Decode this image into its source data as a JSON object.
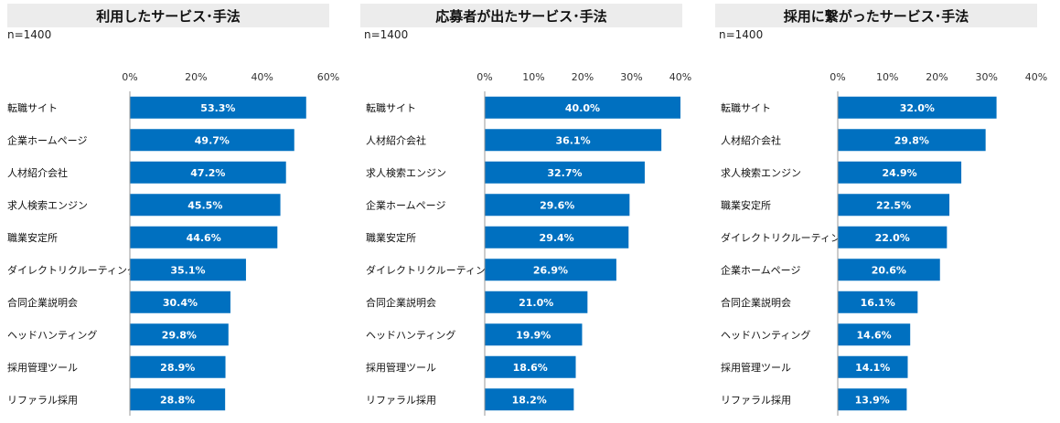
{
  "chart_data": [
    {
      "type": "bar",
      "orientation": "horizontal",
      "title": "利用したサービス･手法",
      "note": "n=1400",
      "categories": [
        "転職サイト",
        "企業ホームページ",
        "人材紹介会社",
        "求人検索エンジン",
        "職業安定所",
        "ダイレクトリクルーティング",
        "合同企業説明会",
        "ヘッドハンティング",
        "採用管理ツール",
        "リファラル採用"
      ],
      "values": [
        53.3,
        49.7,
        47.2,
        45.5,
        44.6,
        35.1,
        30.4,
        29.8,
        28.9,
        28.8
      ],
      "value_labels": [
        "53.3%",
        "49.7%",
        "47.2%",
        "45.5%",
        "44.6%",
        "35.1%",
        "30.4%",
        "29.8%",
        "28.9%",
        "28.8%"
      ],
      "xlim": [
        0,
        60
      ],
      "ticks": [
        "0%",
        "20%",
        "40%",
        "60%"
      ],
      "axis_position": "top",
      "bar_color": "#0070c0"
    },
    {
      "type": "bar",
      "orientation": "horizontal",
      "title": "応募者が出たサービス･手法",
      "note": "n=1400",
      "categories": [
        "転職サイト",
        "人材紹介会社",
        "求人検索エンジン",
        "企業ホームページ",
        "職業安定所",
        "ダイレクトリクルーティング",
        "合同企業説明会",
        "ヘッドハンティング",
        "採用管理ツール",
        "リファラル採用"
      ],
      "values": [
        40.0,
        36.1,
        32.7,
        29.6,
        29.4,
        26.9,
        21.0,
        19.9,
        18.6,
        18.2
      ],
      "value_labels": [
        "40.0%",
        "36.1%",
        "32.7%",
        "29.6%",
        "29.4%",
        "26.9%",
        "21.0%",
        "19.9%",
        "18.6%",
        "18.2%"
      ],
      "xlim": [
        0,
        40
      ],
      "ticks": [
        "0%",
        "10%",
        "20%",
        "30%",
        "40%"
      ],
      "axis_position": "top",
      "bar_color": "#0070c0"
    },
    {
      "type": "bar",
      "orientation": "horizontal",
      "title": "採用に繋がったサービス･手法",
      "note": "n=1400",
      "categories": [
        "転職サイト",
        "人材紹介会社",
        "求人検索エンジン",
        "職業安定所",
        "ダイレクトリクルーティング",
        "企業ホームページ",
        "合同企業説明会",
        "ヘッドハンティング",
        "採用管理ツール",
        "リファラル採用"
      ],
      "values": [
        32.0,
        29.8,
        24.9,
        22.5,
        22.0,
        20.6,
        16.1,
        14.6,
        14.1,
        13.9
      ],
      "value_labels": [
        "32.0%",
        "29.8%",
        "24.9%",
        "22.5%",
        "22.0%",
        "20.6%",
        "16.1%",
        "14.6%",
        "14.1%",
        "13.9%"
      ],
      "xlim": [
        0,
        40
      ],
      "ticks": [
        "0%",
        "10%",
        "20%",
        "30%",
        "40%"
      ],
      "axis_position": "top",
      "bar_color": "#0070c0"
    }
  ]
}
